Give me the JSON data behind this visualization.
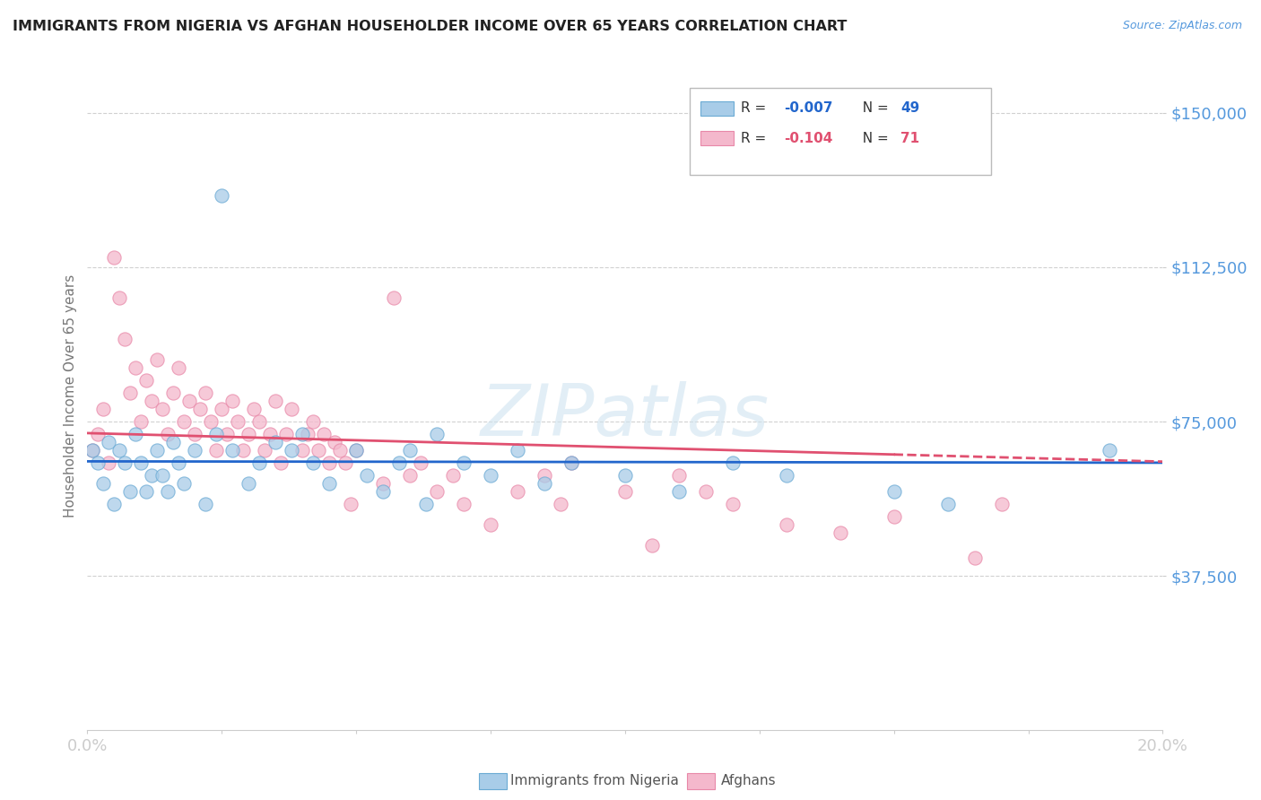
{
  "title": "IMMIGRANTS FROM NIGERIA VS AFGHAN HOUSEHOLDER INCOME OVER 65 YEARS CORRELATION CHART",
  "source": "Source: ZipAtlas.com",
  "ylabel": "Householder Income Over 65 years",
  "xlim": [
    0.0,
    0.2
  ],
  "ylim": [
    0,
    162500
  ],
  "yticks": [
    37500,
    75000,
    112500,
    150000
  ],
  "ytick_labels": [
    "$37,500",
    "$75,000",
    "$112,500",
    "$150,000"
  ],
  "watermark_text": "ZIPatlas",
  "nigeria_color": "#a8cce8",
  "nigeria_edge_color": "#6aaad4",
  "afghan_color": "#f4b8cc",
  "afghan_edge_color": "#e888a8",
  "nigeria_line_color": "#2266cc",
  "afghan_line_color": "#e05070",
  "nigeria_r": -0.007,
  "afghan_r": -0.104,
  "nigeria_n": 49,
  "afghan_n": 71,
  "nigeria_intercept": 68000,
  "afghan_intercept": 80000,
  "nigeria_points": [
    [
      0.001,
      68000
    ],
    [
      0.002,
      65000
    ],
    [
      0.003,
      60000
    ],
    [
      0.004,
      70000
    ],
    [
      0.005,
      55000
    ],
    [
      0.006,
      68000
    ],
    [
      0.007,
      65000
    ],
    [
      0.008,
      58000
    ],
    [
      0.009,
      72000
    ],
    [
      0.01,
      65000
    ],
    [
      0.011,
      58000
    ],
    [
      0.012,
      62000
    ],
    [
      0.013,
      68000
    ],
    [
      0.014,
      62000
    ],
    [
      0.015,
      58000
    ],
    [
      0.016,
      70000
    ],
    [
      0.017,
      65000
    ],
    [
      0.018,
      60000
    ],
    [
      0.02,
      68000
    ],
    [
      0.022,
      55000
    ],
    [
      0.024,
      72000
    ],
    [
      0.025,
      130000
    ],
    [
      0.027,
      68000
    ],
    [
      0.03,
      60000
    ],
    [
      0.032,
      65000
    ],
    [
      0.035,
      70000
    ],
    [
      0.038,
      68000
    ],
    [
      0.04,
      72000
    ],
    [
      0.042,
      65000
    ],
    [
      0.045,
      60000
    ],
    [
      0.05,
      68000
    ],
    [
      0.052,
      62000
    ],
    [
      0.055,
      58000
    ],
    [
      0.058,
      65000
    ],
    [
      0.06,
      68000
    ],
    [
      0.063,
      55000
    ],
    [
      0.065,
      72000
    ],
    [
      0.07,
      65000
    ],
    [
      0.075,
      62000
    ],
    [
      0.08,
      68000
    ],
    [
      0.085,
      60000
    ],
    [
      0.09,
      65000
    ],
    [
      0.1,
      62000
    ],
    [
      0.11,
      58000
    ],
    [
      0.12,
      65000
    ],
    [
      0.13,
      62000
    ],
    [
      0.15,
      58000
    ],
    [
      0.16,
      55000
    ],
    [
      0.19,
      68000
    ]
  ],
  "afghan_points": [
    [
      0.001,
      68000
    ],
    [
      0.002,
      72000
    ],
    [
      0.003,
      78000
    ],
    [
      0.004,
      65000
    ],
    [
      0.005,
      115000
    ],
    [
      0.006,
      105000
    ],
    [
      0.007,
      95000
    ],
    [
      0.008,
      82000
    ],
    [
      0.009,
      88000
    ],
    [
      0.01,
      75000
    ],
    [
      0.011,
      85000
    ],
    [
      0.012,
      80000
    ],
    [
      0.013,
      90000
    ],
    [
      0.014,
      78000
    ],
    [
      0.015,
      72000
    ],
    [
      0.016,
      82000
    ],
    [
      0.017,
      88000
    ],
    [
      0.018,
      75000
    ],
    [
      0.019,
      80000
    ],
    [
      0.02,
      72000
    ],
    [
      0.021,
      78000
    ],
    [
      0.022,
      82000
    ],
    [
      0.023,
      75000
    ],
    [
      0.024,
      68000
    ],
    [
      0.025,
      78000
    ],
    [
      0.026,
      72000
    ],
    [
      0.027,
      80000
    ],
    [
      0.028,
      75000
    ],
    [
      0.029,
      68000
    ],
    [
      0.03,
      72000
    ],
    [
      0.031,
      78000
    ],
    [
      0.032,
      75000
    ],
    [
      0.033,
      68000
    ],
    [
      0.034,
      72000
    ],
    [
      0.035,
      80000
    ],
    [
      0.036,
      65000
    ],
    [
      0.037,
      72000
    ],
    [
      0.038,
      78000
    ],
    [
      0.04,
      68000
    ],
    [
      0.041,
      72000
    ],
    [
      0.042,
      75000
    ],
    [
      0.043,
      68000
    ],
    [
      0.044,
      72000
    ],
    [
      0.045,
      65000
    ],
    [
      0.046,
      70000
    ],
    [
      0.047,
      68000
    ],
    [
      0.048,
      65000
    ],
    [
      0.049,
      55000
    ],
    [
      0.05,
      68000
    ],
    [
      0.055,
      60000
    ],
    [
      0.057,
      105000
    ],
    [
      0.06,
      62000
    ],
    [
      0.062,
      65000
    ],
    [
      0.065,
      58000
    ],
    [
      0.068,
      62000
    ],
    [
      0.07,
      55000
    ],
    [
      0.075,
      50000
    ],
    [
      0.08,
      58000
    ],
    [
      0.085,
      62000
    ],
    [
      0.088,
      55000
    ],
    [
      0.09,
      65000
    ],
    [
      0.1,
      58000
    ],
    [
      0.105,
      45000
    ],
    [
      0.11,
      62000
    ],
    [
      0.115,
      58000
    ],
    [
      0.12,
      55000
    ],
    [
      0.13,
      50000
    ],
    [
      0.14,
      48000
    ],
    [
      0.15,
      52000
    ],
    [
      0.165,
      42000
    ],
    [
      0.17,
      55000
    ]
  ],
  "background_color": "#ffffff",
  "grid_color": "#cccccc",
  "title_color": "#222222",
  "axis_label_color": "#5599dd",
  "legend_text_color": "#333333",
  "legend_r_color": "#2266cc",
  "legend_r_color2": "#e05070"
}
